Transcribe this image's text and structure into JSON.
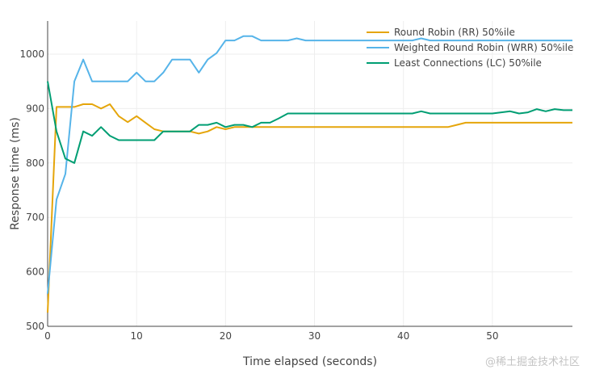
{
  "chart_data": {
    "type": "line",
    "title": "",
    "xlabel": "Time elapsed (seconds)",
    "ylabel": "Response time (ms)",
    "xlim": [
      0,
      59
    ],
    "ylim": [
      500,
      1060
    ],
    "x_ticks": [
      0,
      10,
      20,
      30,
      40,
      50
    ],
    "y_ticks": [
      500,
      600,
      700,
      800,
      900,
      1000
    ],
    "grid": true,
    "legend_position": "top-right",
    "series": [
      {
        "name": "Round Robin (RR) 50%ile",
        "color": "#E5A50A",
        "points": [
          [
            0,
            525
          ],
          [
            1,
            903
          ],
          [
            2,
            903
          ],
          [
            3,
            903
          ],
          [
            4,
            908
          ],
          [
            5,
            908
          ],
          [
            6,
            900
          ],
          [
            7,
            908
          ],
          [
            8,
            886
          ],
          [
            9,
            875
          ],
          [
            10,
            886
          ],
          [
            11,
            874
          ],
          [
            12,
            862
          ],
          [
            13,
            858
          ],
          [
            14,
            858
          ],
          [
            15,
            858
          ],
          [
            16,
            858
          ],
          [
            17,
            854
          ],
          [
            18,
            858
          ],
          [
            19,
            866
          ],
          [
            20,
            862
          ],
          [
            21,
            866
          ],
          [
            22,
            866
          ],
          [
            23,
            866
          ],
          [
            24,
            866
          ],
          [
            25,
            866
          ],
          [
            26,
            866
          ],
          [
            27,
            866
          ],
          [
            28,
            866
          ],
          [
            29,
            866
          ],
          [
            30,
            866
          ],
          [
            35,
            866
          ],
          [
            40,
            866
          ],
          [
            41,
            866
          ],
          [
            42,
            866
          ],
          [
            43,
            866
          ],
          [
            44,
            866
          ],
          [
            45,
            866
          ],
          [
            46,
            870
          ],
          [
            47,
            874
          ],
          [
            48,
            874
          ],
          [
            50,
            874
          ],
          [
            55,
            874
          ],
          [
            58,
            874
          ],
          [
            59,
            874
          ]
        ]
      },
      {
        "name": "Weighted Round Robin (WRR) 50%ile",
        "color": "#56B4E9",
        "points": [
          [
            0,
            560
          ],
          [
            1,
            733
          ],
          [
            2,
            780
          ],
          [
            3,
            950
          ],
          [
            4,
            990
          ],
          [
            5,
            950
          ],
          [
            6,
            950
          ],
          [
            7,
            950
          ],
          [
            8,
            950
          ],
          [
            9,
            950
          ],
          [
            10,
            966
          ],
          [
            11,
            950
          ],
          [
            12,
            950
          ],
          [
            13,
            966
          ],
          [
            14,
            990
          ],
          [
            15,
            990
          ],
          [
            16,
            990
          ],
          [
            17,
            966
          ],
          [
            18,
            990
          ],
          [
            19,
            1002
          ],
          [
            20,
            1025
          ],
          [
            21,
            1025
          ],
          [
            22,
            1033
          ],
          [
            23,
            1033
          ],
          [
            24,
            1025
          ],
          [
            25,
            1025
          ],
          [
            26,
            1025
          ],
          [
            27,
            1025
          ],
          [
            28,
            1029
          ],
          [
            29,
            1025
          ],
          [
            30,
            1025
          ],
          [
            35,
            1025
          ],
          [
            40,
            1025
          ],
          [
            41,
            1025
          ],
          [
            42,
            1029
          ],
          [
            43,
            1025
          ],
          [
            44,
            1025
          ],
          [
            45,
            1025
          ],
          [
            50,
            1025
          ],
          [
            51,
            1025
          ],
          [
            52,
            1025
          ],
          [
            53,
            1025
          ],
          [
            54,
            1025
          ],
          [
            55,
            1025
          ],
          [
            58,
            1025
          ],
          [
            59,
            1025
          ]
        ]
      },
      {
        "name": "Least Connections (LC) 50%ile",
        "color": "#009E73",
        "points": [
          [
            0,
            950
          ],
          [
            1,
            858
          ],
          [
            2,
            808
          ],
          [
            3,
            800
          ],
          [
            4,
            858
          ],
          [
            5,
            850
          ],
          [
            6,
            866
          ],
          [
            7,
            850
          ],
          [
            8,
            842
          ],
          [
            9,
            842
          ],
          [
            10,
            842
          ],
          [
            11,
            842
          ],
          [
            12,
            842
          ],
          [
            13,
            858
          ],
          [
            14,
            858
          ],
          [
            15,
            858
          ],
          [
            16,
            858
          ],
          [
            17,
            870
          ],
          [
            18,
            870
          ],
          [
            19,
            874
          ],
          [
            20,
            866
          ],
          [
            21,
            870
          ],
          [
            22,
            870
          ],
          [
            23,
            866
          ],
          [
            24,
            874
          ],
          [
            25,
            874
          ],
          [
            26,
            882
          ],
          [
            27,
            891
          ],
          [
            28,
            891
          ],
          [
            30,
            891
          ],
          [
            35,
            891
          ],
          [
            40,
            891
          ],
          [
            41,
            891
          ],
          [
            42,
            895
          ],
          [
            43,
            891
          ],
          [
            44,
            891
          ],
          [
            45,
            891
          ],
          [
            50,
            891
          ],
          [
            51,
            893
          ],
          [
            52,
            895
          ],
          [
            53,
            891
          ],
          [
            54,
            893
          ],
          [
            55,
            899
          ],
          [
            56,
            895
          ],
          [
            57,
            899
          ],
          [
            58,
            897
          ],
          [
            59,
            897
          ]
        ]
      }
    ]
  },
  "watermark": "@稀土掘金技术社区"
}
